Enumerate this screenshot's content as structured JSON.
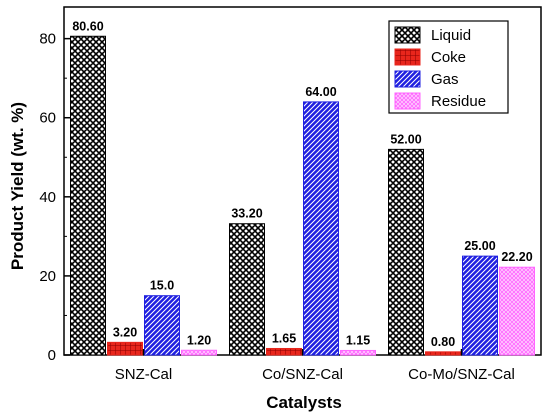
{
  "chart_data": {
    "type": "bar",
    "xlabel": "Catalysts",
    "ylabel": "Product Yield (wt. %)",
    "ylim": [
      0,
      88
    ],
    "yticks": [
      0,
      20,
      40,
      60,
      80
    ],
    "categories": [
      "SNZ-Cal",
      "Co/SNZ-Cal",
      "Co-Mo/SNZ-Cal"
    ],
    "series": [
      {
        "name": "Liquid",
        "values": [
          80.6,
          33.2,
          52.0
        ],
        "labels": [
          "80.60",
          "33.20",
          "52.00"
        ],
        "color": "#000000",
        "fill": "crosshatch"
      },
      {
        "name": "Coke",
        "values": [
          3.2,
          1.65,
          0.8
        ],
        "labels": [
          "3.20",
          "1.65",
          "0.80"
        ],
        "color": "#e8261c",
        "fill": "grid"
      },
      {
        "name": "Gas",
        "values": [
          15.0,
          64.0,
          25.0
        ],
        "labels": [
          "15.0",
          "64.00",
          "25.00"
        ],
        "color": "#1f1fe0",
        "fill": "diagonal"
      },
      {
        "name": "Residue",
        "values": [
          1.2,
          1.15,
          22.2
        ],
        "labels": [
          "1.20",
          "1.15",
          "22.20"
        ],
        "color": "#ff66ff",
        "fill": "dense-crosshatch"
      }
    ],
    "grid": false,
    "legend_position": "top-right"
  }
}
